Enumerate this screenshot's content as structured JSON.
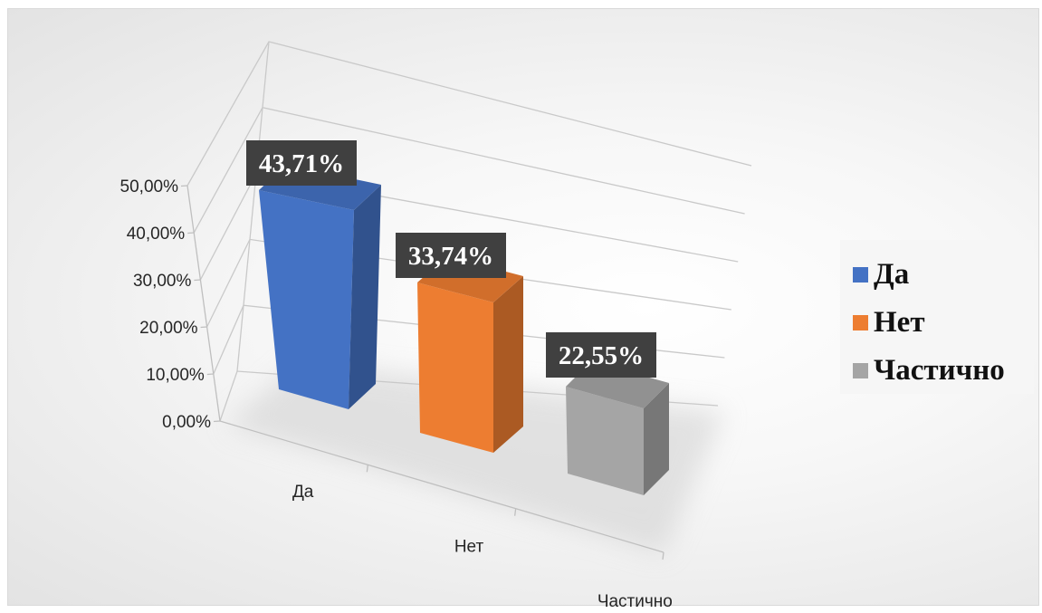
{
  "chart_data": {
    "type": "bar",
    "subtype": "3d-column",
    "categories": [
      "Да",
      "Нет",
      "Частично"
    ],
    "values": [
      43.71,
      33.74,
      22.55
    ],
    "data_labels": [
      "43,71%",
      "33,74%",
      "22,55%"
    ],
    "y_ticks": [
      "0,00%",
      "10,00%",
      "20,00%",
      "30,00%",
      "40,00%",
      "50,00%"
    ],
    "ylim": [
      0,
      50
    ],
    "unit": "%",
    "grid": true,
    "legend_position": "right",
    "legend": [
      {
        "label": "Да",
        "color": "#4472c4"
      },
      {
        "label": "Нет",
        "color": "#ed7d31"
      },
      {
        "label": "Частично",
        "color": "#a5a5a5"
      }
    ],
    "colors": [
      "#4472c4",
      "#ed7d31",
      "#a5a5a5"
    ]
  }
}
